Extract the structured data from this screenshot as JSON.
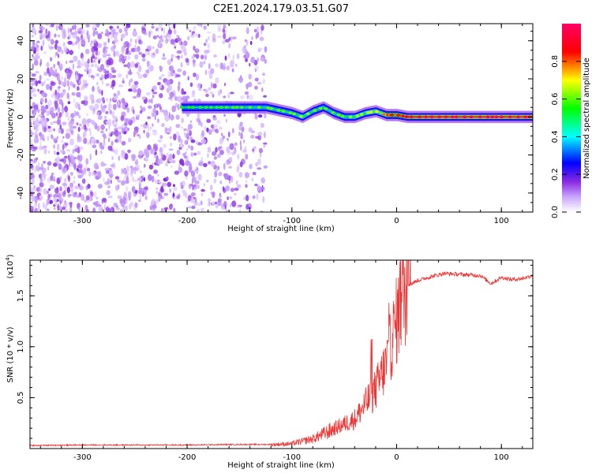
{
  "title": "C2E1.2024.179.03.51.G07",
  "chart_data": [
    {
      "type": "heatmap",
      "xlabel": "Height of straight line (km)",
      "ylabel": "Frequency (Hz)",
      "xlim": [
        -350,
        130
      ],
      "ylim": [
        -50,
        49
      ],
      "xticks": [
        -300,
        -200,
        -100,
        0,
        100
      ],
      "yticks": [
        -40,
        -20,
        0,
        20,
        40
      ],
      "colorbar": {
        "label": "Normalized spectral amplitude",
        "range": [
          0,
          1
        ],
        "ticks": [
          "0.0",
          "0.2",
          "0.4",
          "0.6",
          "0.8"
        ],
        "colors": [
          "#ffffff",
          "#c9a6ff",
          "#8a2be2",
          "#0000ff",
          "#00ffff",
          "#00ff00",
          "#ffff00",
          "#ff0000",
          "#ff0066"
        ]
      },
      "noise_region": {
        "x": [
          -350,
          -125
        ],
        "amplitude": [
          0.1,
          0.3
        ]
      },
      "signal_band": {
        "x": [
          -205,
          -125,
          -100,
          -90,
          -80,
          -70,
          -60,
          -50,
          -40,
          -30,
          -20,
          -10,
          0,
          10,
          30,
          60,
          100,
          130
        ],
        "frequency": [
          5,
          5,
          2,
          0,
          3,
          5,
          2,
          0,
          0,
          2,
          3,
          1,
          1,
          0,
          0,
          0,
          0,
          0
        ],
        "amplitude": [
          0.45,
          0.5,
          0.5,
          0.55,
          0.5,
          0.5,
          0.5,
          0.5,
          0.55,
          0.55,
          0.6,
          0.7,
          0.8,
          0.85,
          0.9,
          0.9,
          0.9,
          0.9
        ]
      }
    },
    {
      "type": "line",
      "xlabel": "Height of straight line (km)",
      "ylabel": "SNR (10 * v/v)",
      "yscale_label": "(x10",
      "yscale_exp": "4",
      "xlim": [
        -350,
        130
      ],
      "ylim": [
        0,
        1.85
      ],
      "xticks": [
        -300,
        -200,
        -100,
        0,
        100
      ],
      "yticks": [
        "0.5",
        "1.0",
        "1.5"
      ],
      "color": "#ee3333",
      "series": [
        {
          "x": [
            -350,
            -300,
            -250,
            -200,
            -150,
            -120,
            -100,
            -80,
            -60,
            -40,
            -30,
            -20,
            -10,
            0,
            5,
            10,
            20,
            30,
            45,
            60,
            80,
            90,
            100,
            110,
            120,
            130
          ],
          "values": [
            0.03,
            0.035,
            0.035,
            0.035,
            0.04,
            0.04,
            0.05,
            0.1,
            0.2,
            0.3,
            0.45,
            0.6,
            0.85,
            1.3,
            1.55,
            1.6,
            1.65,
            1.68,
            1.72,
            1.71,
            1.7,
            1.62,
            1.68,
            1.66,
            1.67,
            1.7
          ]
        }
      ]
    }
  ]
}
